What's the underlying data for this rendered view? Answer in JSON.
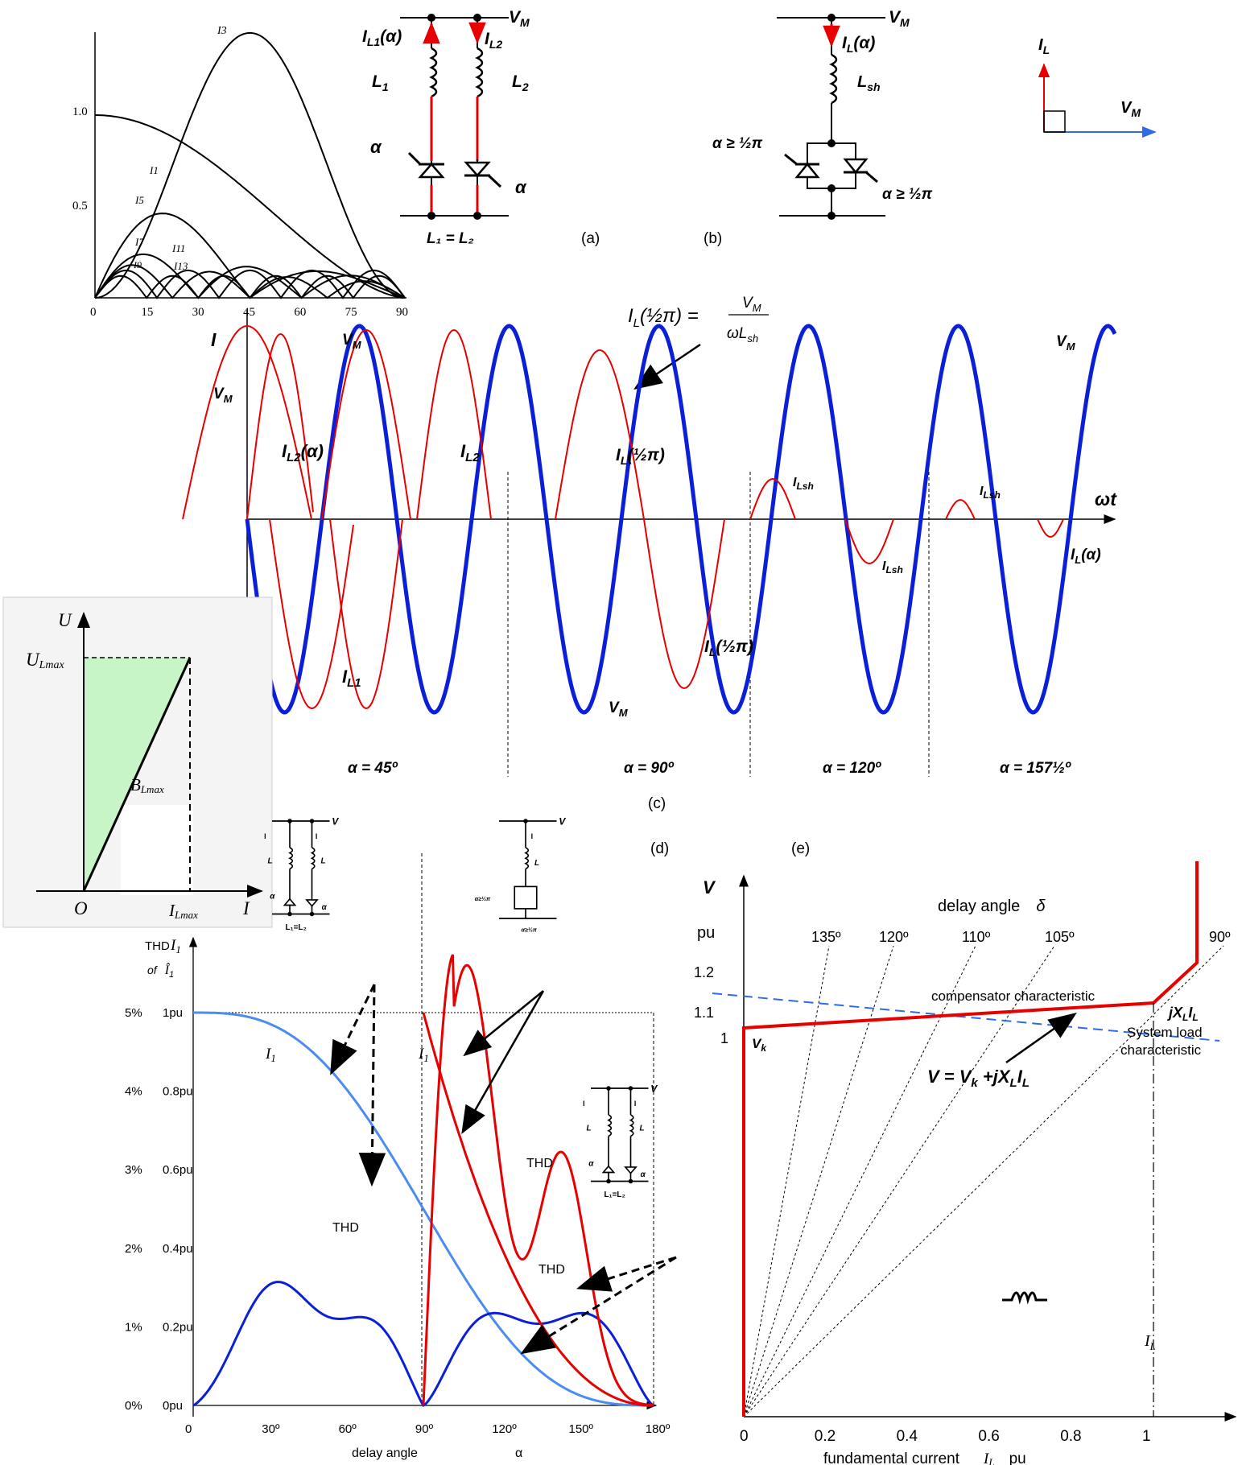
{
  "colors": {
    "red": "#e60000",
    "blue": "#0b1fd9",
    "light_blue": "#4a8cf0",
    "green_fill": "#c8f5c8",
    "dash_blue": "#2e6be6"
  },
  "harmonics_plot": {
    "x_ticks": [
      "0",
      "15",
      "30",
      "45",
      "60",
      "75",
      "90"
    ],
    "y_ticks": [
      "0.5",
      "1.0"
    ],
    "curve_labels": [
      "I3",
      "I1",
      "I5",
      "I7",
      "I9",
      "I11",
      "I13"
    ]
  },
  "panel_a": {
    "vm": "V",
    "vm_sub": "M",
    "il1": "I",
    "il1_sub": "L1",
    "il1_arg": "(α)",
    "il2": "I",
    "il2_sub": "L2",
    "l1": "L",
    "l1_sub": "1",
    "l2": "L",
    "l2_sub": "2",
    "alpha": "α",
    "equal": "L₁ = L₂",
    "caption": "(a)"
  },
  "panel_b": {
    "vm": "V",
    "vm_sub": "M",
    "il": "I",
    "il_sub": "L",
    "il_arg": "(α)",
    "lsh": "L",
    "lsh_sub": "sh",
    "alpha": "α ≥ ½π",
    "caption": "(b)"
  },
  "phasor": {
    "il": "I",
    "il_sub": "L",
    "vm": "V",
    "vm_sub": "M"
  },
  "panel_c": {
    "formula_lhs": "I",
    "formula_sub": "L",
    "formula_arg": "(½π) =",
    "formula_num": "V",
    "formula_num_sub": "M",
    "formula_den": "ωL",
    "formula_den_sub": "sh",
    "y_axis": "I",
    "vm": "V",
    "vm_sub": "M",
    "x_axis": "ωt",
    "labels": {
      "il2a": "(α)",
      "il2_sub": "L2",
      "il1_sub": "L1",
      "il_half": "(½π)",
      "il_sub": "L",
      "ilsh_sub": "Lsh",
      "ila": "(α)",
      "i": "I"
    },
    "alphas": [
      "α = 45º",
      "α = 90º",
      "α = 120º",
      "α = 157½º"
    ],
    "caption": "(c)"
  },
  "ui_plot": {
    "y_axis": "U",
    "x_axis": "I",
    "origin": "O",
    "ulmax": "U",
    "ulmax_sub": "Lmax",
    "blmax": "B",
    "blmax_sub": "Lmax",
    "ilmax": "I",
    "ilmax_sub": "Lmax"
  },
  "panel_d": {
    "caption": "(d)",
    "thd_title": "THD",
    "thd_of": "of",
    "i1_hat": "Î",
    "i1_hat_sub": "1",
    "i1_axis": "I",
    "i1_axis_sub": "1",
    "y_ticks_pct": [
      "0%",
      "1%",
      "2%",
      "3%",
      "4%",
      "5%"
    ],
    "y_ticks_pu": [
      "0pu",
      "0.2pu",
      "0.4pu",
      "0.6pu",
      "0.8pu",
      "1pu"
    ],
    "x_ticks": [
      "0",
      "30º",
      "60º",
      "90º",
      "120º",
      "150º",
      "180º"
    ],
    "x_label": "delay angle",
    "x_label2": "α",
    "curve_i1": "I",
    "curve_i1_sub": "1",
    "thd": "THD",
    "mini_vm": "V",
    "mini_il1": "I",
    "mini_il2": "I",
    "mini_l1": "L",
    "mini_l2": "L",
    "mini_alpha": "α",
    "mini_eq": "L₁=L₂",
    "mini_alpha_ge": "α≥½π",
    "mini_L": "L"
  },
  "panel_e": {
    "caption": "(e)",
    "v_axis": "V",
    "pu": "pu",
    "y_ticks": [
      "1",
      "1.1",
      "1.2"
    ],
    "x_ticks": [
      "0",
      "0.2",
      "0.4",
      "0.6",
      "0.8",
      "1"
    ],
    "x_label": "fundamental current",
    "x_label_sym": "I",
    "x_label_sub": "L",
    "x_label_pu": "pu",
    "delay_title": "delay angle",
    "delta": "δ",
    "angles": [
      "135º",
      "120º",
      "110º",
      "105º",
      "90º"
    ],
    "compensator": "compensator characteristic",
    "system_load1": "System load",
    "system_load2": "characteristic",
    "vk": "V",
    "vk_sub": "k",
    "eq_lhs": "V = V",
    "eq_k": "k",
    "eq_mid": " +jX",
    "eq_L": "L",
    "eq_I": "I",
    "jxl": "jX",
    "il_marker": "I",
    "il_marker_sub": "L"
  }
}
